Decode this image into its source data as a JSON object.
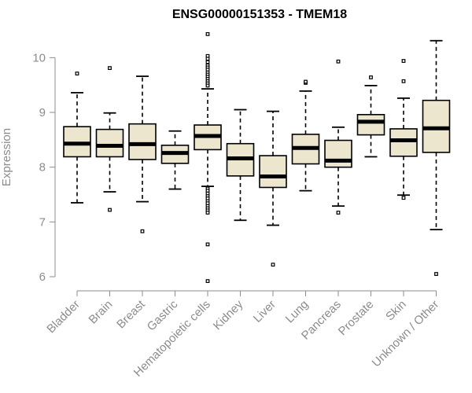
{
  "chart_data": {
    "type": "boxplot",
    "title": "ENSG00000151353 - TMEM18",
    "xlabel": "",
    "ylabel": "Expression",
    "ylim": [
      5.9,
      10.45
    ],
    "yticks": [
      6,
      7,
      8,
      9,
      10
    ],
    "box_fill": "#ede6cf",
    "box_stroke": "#000000",
    "median_color": "#000000",
    "axis_color": "#8c8c8c",
    "categories": [
      "Bladder",
      "Brain",
      "Breast",
      "Gastric",
      "Hematopoietic cells",
      "Kidney",
      "Liver",
      "Lung",
      "Pancreas",
      "Prostate",
      "Skin",
      "Unknown / Other"
    ],
    "boxes": [
      {
        "category": "Bladder",
        "whisker_low": 7.35,
        "q1": 8.19,
        "median": 8.43,
        "q3": 8.74,
        "whisker_high": 9.36,
        "outliers": [
          9.71
        ]
      },
      {
        "category": "Brain",
        "whisker_low": 7.55,
        "q1": 8.19,
        "median": 8.39,
        "q3": 8.69,
        "whisker_high": 8.99,
        "outliers": [
          7.22,
          9.81
        ]
      },
      {
        "category": "Breast",
        "whisker_low": 7.37,
        "q1": 8.14,
        "median": 8.42,
        "q3": 8.79,
        "whisker_high": 9.66,
        "outliers": [
          6.83
        ]
      },
      {
        "category": "Gastric",
        "whisker_low": 7.6,
        "q1": 8.07,
        "median": 8.26,
        "q3": 8.4,
        "whisker_high": 8.66,
        "outliers": []
      },
      {
        "category": "Hematopoietic cells",
        "whisker_low": 7.65,
        "q1": 8.32,
        "median": 8.57,
        "q3": 8.77,
        "whisker_high": 9.43,
        "outliers": [
          10.43,
          10.03,
          9.98,
          9.92,
          9.86,
          9.82,
          9.78,
          9.73,
          9.69,
          9.65,
          9.61,
          9.57,
          9.53,
          9.49,
          7.61,
          7.57,
          7.52,
          7.47,
          7.43,
          7.38,
          7.34,
          7.29,
          7.25,
          7.21,
          7.17,
          6.59,
          5.92
        ]
      },
      {
        "category": "Kidney",
        "whisker_low": 7.03,
        "q1": 7.84,
        "median": 8.16,
        "q3": 8.43,
        "whisker_high": 9.05,
        "outliers": []
      },
      {
        "category": "Liver",
        "whisker_low": 6.94,
        "q1": 7.63,
        "median": 7.83,
        "q3": 8.21,
        "whisker_high": 9.02,
        "outliers": [
          6.22
        ]
      },
      {
        "category": "Lung",
        "whisker_low": 7.57,
        "q1": 8.06,
        "median": 8.35,
        "q3": 8.6,
        "whisker_high": 9.39,
        "outliers": [
          9.54,
          9.56
        ]
      },
      {
        "category": "Pancreas",
        "whisker_low": 7.29,
        "q1": 8.0,
        "median": 8.12,
        "q3": 8.49,
        "whisker_high": 8.73,
        "outliers": [
          9.93,
          7.17
        ]
      },
      {
        "category": "Prostate",
        "whisker_low": 8.19,
        "q1": 8.59,
        "median": 8.83,
        "q3": 8.96,
        "whisker_high": 9.49,
        "outliers": [
          9.64
        ]
      },
      {
        "category": "Skin",
        "whisker_low": 7.49,
        "q1": 8.2,
        "median": 8.49,
        "q3": 8.7,
        "whisker_high": 9.26,
        "outliers": [
          9.94,
          9.57,
          7.44
        ]
      },
      {
        "category": "Unknown / Other",
        "whisker_low": 6.86,
        "q1": 8.27,
        "median": 8.71,
        "q3": 9.22,
        "whisker_high": 10.31,
        "outliers": [
          6.05
        ]
      }
    ]
  }
}
